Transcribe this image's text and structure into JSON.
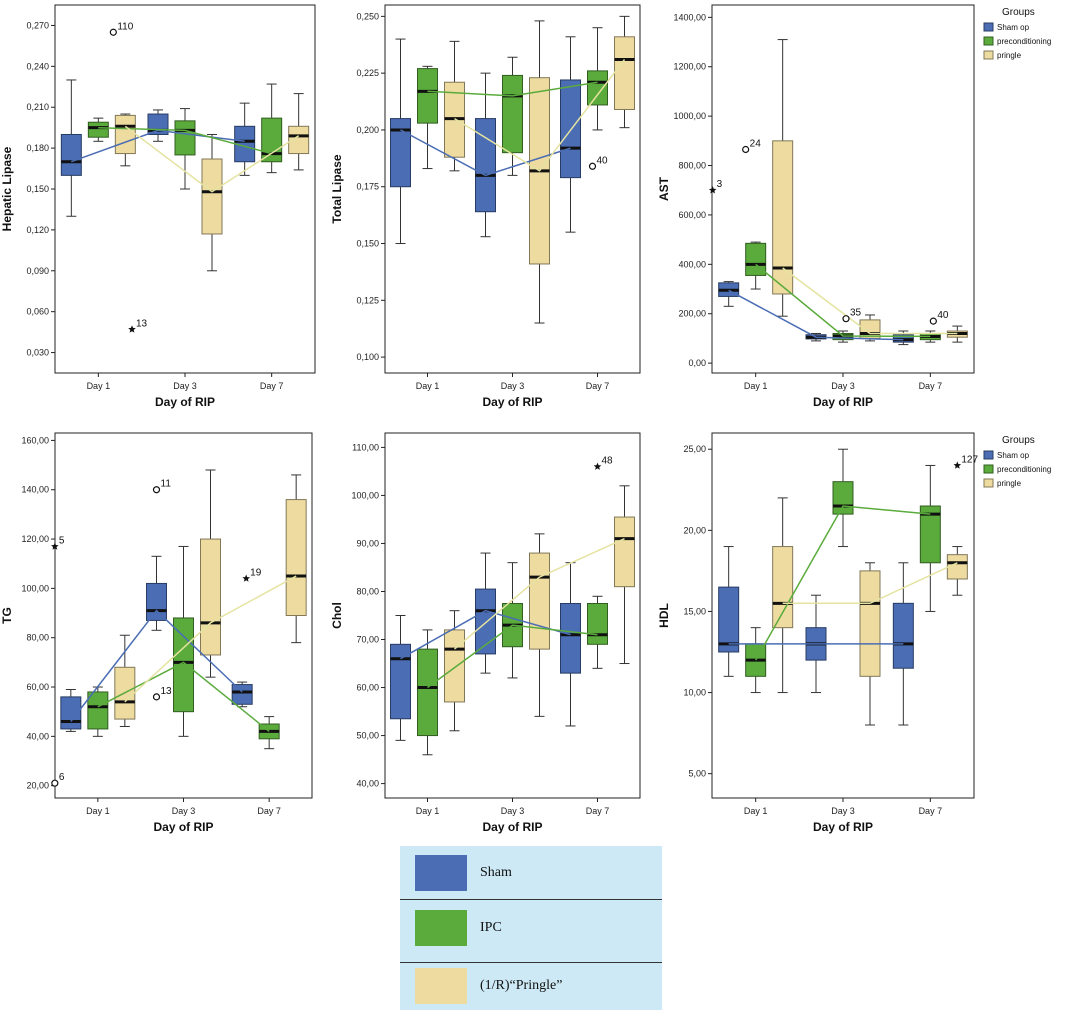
{
  "colors": {
    "sham": "#4a6db4",
    "ipc": "#5aab3c",
    "pringle": "#eddba0"
  },
  "group_keys": [
    "sham",
    "ipc",
    "pringle"
  ],
  "x_label": "Day of RIP",
  "days": [
    "Day 1",
    "Day 3",
    "Day 7"
  ],
  "legend_box": {
    "title": "Groups",
    "items": [
      {
        "key": "sham",
        "label": "Sham op"
      },
      {
        "key": "ipc",
        "label": "preconditioning"
      },
      {
        "key": "pringle",
        "label": "pringle"
      }
    ]
  },
  "key": {
    "items": [
      {
        "key": "sham",
        "label": "Sham"
      },
      {
        "key": "ipc",
        "label": "IPC"
      },
      {
        "key": "pringle",
        "label": "(1/R)“Pringle”"
      }
    ]
  },
  "chart_data": [
    {
      "type": "boxplot",
      "ylabel": "Hepatic Lipase",
      "xlabel": "Day of RIP",
      "categories": [
        "Day 1",
        "Day 3",
        "Day 7"
      ],
      "ylim": [
        0.015,
        0.285
      ],
      "ticks": [
        0.03,
        0.06,
        0.09,
        0.12,
        0.15,
        0.18,
        0.21,
        0.24,
        0.27
      ],
      "tick_labels": [
        "0,030",
        "0,060",
        "0,090",
        "0,120",
        "0,150",
        "0,180",
        "0,210",
        "0,240",
        "0,270"
      ],
      "legend": false,
      "series": [
        {
          "name": "Sham op",
          "key": "sham",
          "boxes": [
            {
              "min": 0.13,
              "q1": 0.16,
              "median": 0.17,
              "q3": 0.19,
              "max": 0.23
            },
            {
              "min": 0.185,
              "q1": 0.19,
              "median": 0.193,
              "q3": 0.205,
              "max": 0.208
            },
            {
              "min": 0.16,
              "q1": 0.17,
              "median": 0.185,
              "q3": 0.196,
              "max": 0.213
            }
          ]
        },
        {
          "name": "preconditioning",
          "key": "ipc",
          "boxes": [
            {
              "min": 0.185,
              "q1": 0.188,
              "median": 0.195,
              "q3": 0.199,
              "max": 0.202
            },
            {
              "min": 0.15,
              "q1": 0.175,
              "median": 0.193,
              "q3": 0.2,
              "max": 0.209
            },
            {
              "min": 0.162,
              "q1": 0.17,
              "median": 0.176,
              "q3": 0.202,
              "max": 0.227
            }
          ]
        },
        {
          "name": "pringle",
          "key": "pringle",
          "boxes": [
            {
              "min": 0.167,
              "q1": 0.176,
              "median": 0.196,
              "q3": 0.204,
              "max": 0.205
            },
            {
              "min": 0.09,
              "q1": 0.117,
              "median": 0.148,
              "q3": 0.172,
              "max": 0.19
            },
            {
              "min": 0.164,
              "q1": 0.176,
              "median": 0.189,
              "q3": 0.196,
              "max": 0.22
            }
          ]
        }
      ],
      "outliers": [
        {
          "day": 0,
          "group": 2,
          "value": 0.265,
          "marker": "circle",
          "label": "110",
          "dx": -12
        },
        {
          "day": 1,
          "group": 0,
          "value": 0.047,
          "marker": "star",
          "label": "13",
          "dx": -26
        }
      ]
    },
    {
      "type": "boxplot",
      "ylabel": "Total Lipase",
      "xlabel": "Day of RIP",
      "categories": [
        "Day 1",
        "Day 3",
        "Day 7"
      ],
      "ylim": [
        0.093,
        0.255
      ],
      "ticks": [
        0.1,
        0.125,
        0.15,
        0.175,
        0.2,
        0.225,
        0.25
      ],
      "tick_labels": [
        "0,100",
        "0,125",
        "0,150",
        "0,175",
        "0,200",
        "0,225",
        "0,250"
      ],
      "legend": false,
      "series": [
        {
          "name": "Sham op",
          "key": "sham",
          "boxes": [
            {
              "min": 0.15,
              "q1": 0.175,
              "median": 0.2,
              "q3": 0.205,
              "max": 0.24
            },
            {
              "min": 0.153,
              "q1": 0.164,
              "median": 0.18,
              "q3": 0.205,
              "max": 0.225
            },
            {
              "min": 0.155,
              "q1": 0.179,
              "median": 0.192,
              "q3": 0.222,
              "max": 0.241
            }
          ]
        },
        {
          "name": "preconditioning",
          "key": "ipc",
          "boxes": [
            {
              "min": 0.183,
              "q1": 0.203,
              "median": 0.217,
              "q3": 0.227,
              "max": 0.228
            },
            {
              "min": 0.18,
              "q1": 0.19,
              "median": 0.215,
              "q3": 0.224,
              "max": 0.232
            },
            {
              "min": 0.2,
              "q1": 0.211,
              "median": 0.221,
              "q3": 0.226,
              "max": 0.245
            }
          ]
        },
        {
          "name": "pringle",
          "key": "pringle",
          "boxes": [
            {
              "min": 0.182,
              "q1": 0.188,
              "median": 0.205,
              "q3": 0.221,
              "max": 0.239
            },
            {
              "min": 0.115,
              "q1": 0.141,
              "median": 0.182,
              "q3": 0.223,
              "max": 0.248
            },
            {
              "min": 0.201,
              "q1": 0.209,
              "median": 0.231,
              "q3": 0.241,
              "max": 0.25
            }
          ]
        }
      ],
      "outliers": [
        {
          "day": 2,
          "group": 0,
          "value": 0.184,
          "marker": "circle",
          "label": "40",
          "dx": 22
        }
      ]
    },
    {
      "type": "boxplot",
      "ylabel": "AST",
      "xlabel": "Day of RIP",
      "categories": [
        "Day 1",
        "Day 3",
        "Day 7"
      ],
      "ylim": [
        -40,
        1450
      ],
      "ticks": [
        0,
        200,
        400,
        600,
        800,
        1000,
        1200,
        1400
      ],
      "tick_labels": [
        "0,00",
        "200,00",
        "400,00",
        "600,00",
        "800,00",
        "1000,00",
        "1200,00",
        "1400,00"
      ],
      "legend": true,
      "series": [
        {
          "name": "Sham op",
          "key": "sham",
          "boxes": [
            {
              "min": 230,
              "q1": 270,
              "median": 295,
              "q3": 325,
              "max": 330
            },
            {
              "min": 90,
              "q1": 98,
              "median": 105,
              "q3": 115,
              "max": 120
            },
            {
              "min": 75,
              "q1": 85,
              "median": 95,
              "q3": 115,
              "max": 130
            }
          ]
        },
        {
          "name": "preconditioning",
          "key": "ipc",
          "boxes": [
            {
              "min": 300,
              "q1": 355,
              "median": 400,
              "q3": 485,
              "max": 490
            },
            {
              "min": 85,
              "q1": 95,
              "median": 110,
              "q3": 120,
              "max": 130
            },
            {
              "min": 85,
              "q1": 95,
              "median": 108,
              "q3": 120,
              "max": 130
            }
          ]
        },
        {
          "name": "pringle",
          "key": "pringle",
          "boxes": [
            {
              "min": 190,
              "q1": 280,
              "median": 385,
              "q3": 900,
              "max": 1310
            },
            {
              "min": 90,
              "q1": 100,
              "median": 120,
              "q3": 175,
              "max": 195
            },
            {
              "min": 85,
              "q1": 105,
              "median": 120,
              "q3": 130,
              "max": 150
            }
          ]
        }
      ],
      "outliers": [
        {
          "day": 0,
          "group": 0,
          "value": 700,
          "marker": "star",
          "label": "3",
          "dx": -16
        },
        {
          "day": 0,
          "group": 1,
          "value": 865,
          "marker": "circle",
          "label": "24",
          "dx": -10
        },
        {
          "day": 1,
          "group": 1,
          "value": 180,
          "marker": "circle",
          "label": "35",
          "dx": 3
        },
        {
          "day": 2,
          "group": 1,
          "value": 170,
          "marker": "circle",
          "label": "40",
          "dx": 3
        }
      ]
    },
    {
      "type": "boxplot",
      "ylabel": "TG",
      "xlabel": "Day of RIP",
      "categories": [
        "Day 1",
        "Day 3",
        "Day 7"
      ],
      "ylim": [
        15,
        163
      ],
      "ticks": [
        20,
        40,
        60,
        80,
        100,
        120,
        140,
        160
      ],
      "tick_labels": [
        "20,00",
        "40,00",
        "60,00",
        "80,00",
        "100,00",
        "120,00",
        "140,00",
        "160,00"
      ],
      "legend": false,
      "series": [
        {
          "name": "Sham op",
          "key": "sham",
          "boxes": [
            {
              "min": 42,
              "q1": 43,
              "median": 46,
              "q3": 56,
              "max": 59
            },
            {
              "min": 83,
              "q1": 87,
              "median": 91,
              "q3": 102,
              "max": 113
            },
            {
              "min": 52,
              "q1": 53,
              "median": 58,
              "q3": 61,
              "max": 62
            }
          ]
        },
        {
          "name": "preconditioning",
          "key": "ipc",
          "boxes": [
            {
              "min": 40,
              "q1": 43,
              "median": 52,
              "q3": 58,
              "max": 60
            },
            {
              "min": 40,
              "q1": 50,
              "median": 70,
              "q3": 88,
              "max": 117
            },
            {
              "min": 35,
              "q1": 39,
              "median": 42,
              "q3": 45,
              "max": 48
            }
          ]
        },
        {
          "name": "pringle",
          "key": "pringle",
          "boxes": [
            {
              "min": 44,
              "q1": 47,
              "median": 54,
              "q3": 68,
              "max": 81
            },
            {
              "min": 64,
              "q1": 73,
              "median": 86,
              "q3": 120,
              "max": 148
            },
            {
              "min": 78,
              "q1": 89,
              "median": 105,
              "q3": 136,
              "max": 146
            }
          ]
        }
      ],
      "outliers": [
        {
          "day": 0,
          "group": 0,
          "value": 117,
          "marker": "star",
          "label": "5",
          "dx": -16
        },
        {
          "day": 0,
          "group": 0,
          "value": 21,
          "marker": "circle",
          "label": "6",
          "dx": -16
        },
        {
          "day": 1,
          "group": 0,
          "value": 140,
          "marker": "circle",
          "label": "11",
          "dx": 0
        },
        {
          "day": 1,
          "group": 0,
          "value": 56,
          "marker": "circle",
          "label": "13",
          "dx": 0
        },
        {
          "day": 2,
          "group": 0,
          "value": 104,
          "marker": "star",
          "label": "19",
          "dx": 4
        }
      ]
    },
    {
      "type": "boxplot",
      "ylabel": "Chol",
      "xlabel": "Day of RIP",
      "categories": [
        "Day 1",
        "Day 3",
        "Day 7"
      ],
      "ylim": [
        37,
        113
      ],
      "ticks": [
        40,
        50,
        60,
        70,
        80,
        90,
        100,
        110
      ],
      "tick_labels": [
        "40,00",
        "50,00",
        "60,00",
        "70,00",
        "80,00",
        "90,00",
        "100,00",
        "110,00"
      ],
      "legend": false,
      "series": [
        {
          "name": "Sham op",
          "key": "sham",
          "boxes": [
            {
              "min": 49,
              "q1": 53.5,
              "median": 66,
              "q3": 69,
              "max": 75
            },
            {
              "min": 63,
              "q1": 67,
              "median": 76,
              "q3": 80.5,
              "max": 88
            },
            {
              "min": 52,
              "q1": 63,
              "median": 71,
              "q3": 77.5,
              "max": 86
            }
          ]
        },
        {
          "name": "preconditioning",
          "key": "ipc",
          "boxes": [
            {
              "min": 46,
              "q1": 50,
              "median": 60,
              "q3": 68,
              "max": 72
            },
            {
              "min": 62,
              "q1": 68.5,
              "median": 73,
              "q3": 77.5,
              "max": 86
            },
            {
              "min": 64,
              "q1": 69,
              "median": 71,
              "q3": 77.5,
              "max": 79
            }
          ]
        },
        {
          "name": "pringle",
          "key": "pringle",
          "boxes": [
            {
              "min": 51,
              "q1": 57,
              "median": 68,
              "q3": 72,
              "max": 76
            },
            {
              "min": 54,
              "q1": 68,
              "median": 83,
              "q3": 88,
              "max": 92
            },
            {
              "min": 65,
              "q1": 81,
              "median": 91,
              "q3": 95.5,
              "max": 102
            }
          ]
        }
      ],
      "outliers": [
        {
          "day": 2,
          "group": 1,
          "value": 106,
          "marker": "star",
          "label": "48",
          "dx": 0
        }
      ]
    },
    {
      "type": "boxplot",
      "ylabel": "HDL",
      "xlabel": "Day of RIP",
      "categories": [
        "Day 1",
        "Day 3",
        "Day 7"
      ],
      "ylim": [
        3.5,
        26
      ],
      "ticks": [
        5,
        10,
        15,
        20,
        25
      ],
      "tick_labels": [
        "5,00",
        "10,00",
        "15,00",
        "20,00",
        "25,00"
      ],
      "legend": true,
      "series": [
        {
          "name": "Sham op",
          "key": "sham",
          "boxes": [
            {
              "min": 11,
              "q1": 12.5,
              "median": 13,
              "q3": 16.5,
              "max": 19
            },
            {
              "min": 10,
              "q1": 12,
              "median": 13,
              "q3": 14,
              "max": 16
            },
            {
              "min": 8,
              "q1": 11.5,
              "median": 13,
              "q3": 15.5,
              "max": 18
            }
          ]
        },
        {
          "name": "preconditioning",
          "key": "ipc",
          "boxes": [
            {
              "min": 10,
              "q1": 11,
              "median": 12,
              "q3": 13,
              "max": 14
            },
            {
              "min": 19,
              "q1": 21,
              "median": 21.5,
              "q3": 23,
              "max": 25
            },
            {
              "min": 15,
              "q1": 18,
              "median": 21,
              "q3": 21.5,
              "max": 24
            }
          ]
        },
        {
          "name": "pringle",
          "key": "pringle",
          "boxes": [
            {
              "min": 10,
              "q1": 14,
              "median": 15.5,
              "q3": 19,
              "max": 22
            },
            {
              "min": 8,
              "q1": 11,
              "median": 15.5,
              "q3": 17.5,
              "max": 18
            },
            {
              "min": 16,
              "q1": 17,
              "median": 18,
              "q3": 18.5,
              "max": 19
            }
          ]
        }
      ],
      "outliers": [
        {
          "day": 2,
          "group": 2,
          "value": 24,
          "marker": "star",
          "label": "127",
          "dx": 0
        }
      ]
    }
  ]
}
